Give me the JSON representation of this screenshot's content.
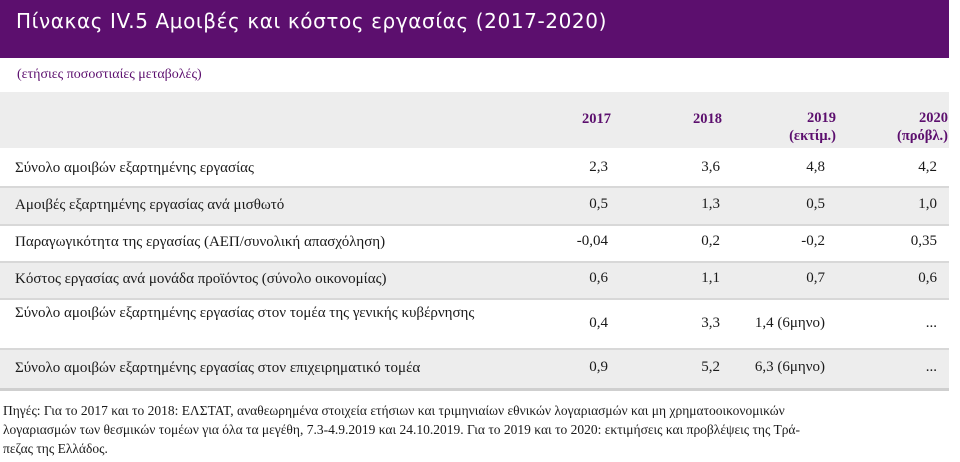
{
  "title": "Πίνακας IV.5 Αμοιβές και κόστος εργασίας (2017-2020)",
  "subtitle": "(ετήσιες ποσοστιαίες μεταβολές)",
  "columns": [
    {
      "line1": "",
      "line2": "2017"
    },
    {
      "line1": "",
      "line2": "2018"
    },
    {
      "line1": "2019",
      "line2": "(εκτίμ.)"
    },
    {
      "line1": "2020",
      "line2": "(πρόβλ.)"
    }
  ],
  "rows": [
    {
      "label": "Σύνολο αμοιβών εξαρτημένης εργασίας",
      "values": [
        "2,3",
        "3,6",
        "4,8",
        "4,2"
      ]
    },
    {
      "label": "Αμοιβές εξαρτημένης εργασίας ανά μισθωτό",
      "values": [
        "0,5",
        "1,3",
        "0,5",
        "1,0"
      ]
    },
    {
      "label": "Παραγωγικότητα της εργασίας (ΑΕΠ/συνολική απασχόληση)",
      "values": [
        "-0,04",
        "0,2",
        "-0,2",
        "0,35"
      ]
    },
    {
      "label": "Κόστος εργασίας ανά μονάδα προϊόντος (σύνολο οικονομίας)",
      "values": [
        "0,6",
        "1,1",
        "0,7",
        "0,6"
      ]
    },
    {
      "label": "Σύνολο αμοιβών εξαρτημένης εργασίας στον τομέα της γενικής κυβέρνησης",
      "values": [
        "0,4",
        "3,3",
        "1,4 (6μηνο)",
        "..."
      ]
    },
    {
      "label": "Σύνολο αμοιβών εξαρτημένης εργασίας στον επιχειρηματικό τομέα",
      "values": [
        "0,9",
        "5,2",
        "6,3 (6μηνο)",
        "..."
      ]
    }
  ],
  "footnote": {
    "line1": "Πηγές: Για το 2017 και το 2018: ΕΛΣΤΑΤ, αναθεωρημένα στοιχεία ετήσιων και τριμηνιαίων εθνικών λογαριασμών και μη χρηματοοικονομικών",
    "line2": "λογαριασμών  των θεσμικών τομέων για όλα τα μεγέθη, 7.3-4.9.2019 και 24.10.2019. Για το 2019 και το 2020: εκτιμήσεις και προβλέψεις της Τρά-",
    "line3": "πεζας της Ελλάδος."
  }
}
